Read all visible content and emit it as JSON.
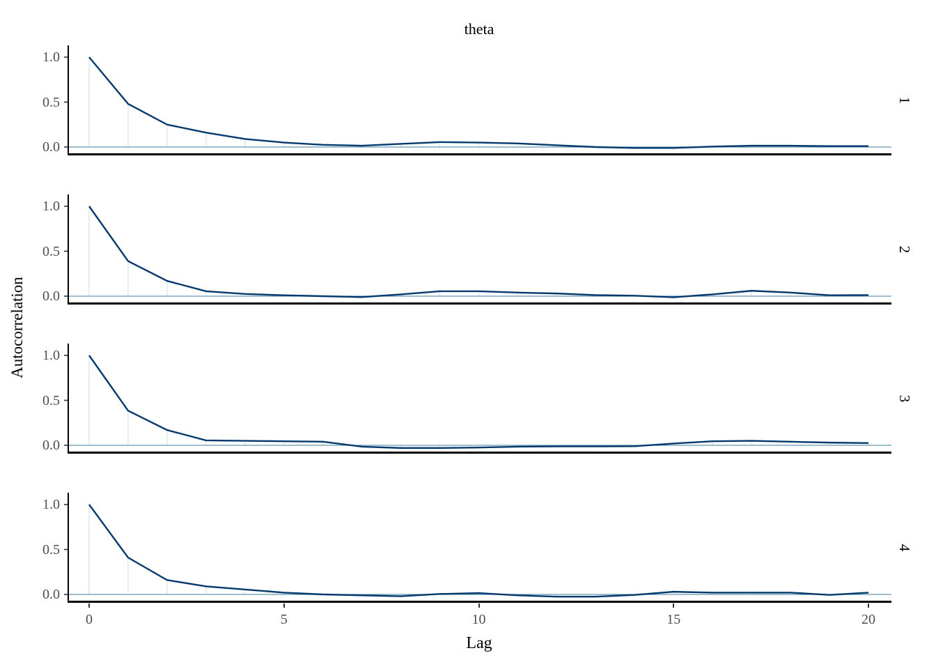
{
  "title": "theta",
  "y_axis": {
    "label": "Autocorrelation",
    "tick_labels": [
      "1.0",
      "0.5",
      "0.0"
    ],
    "tick_values": [
      1.0,
      0.5,
      0.0
    ]
  },
  "x_axis": {
    "label": "Lag",
    "tick_labels": [
      "0",
      "5",
      "10",
      "15",
      "20"
    ],
    "tick_values": [
      0,
      5,
      10,
      15,
      20
    ]
  },
  "facet_labels": [
    "1",
    "2",
    "3",
    "4"
  ],
  "colors": {
    "acf_line": "#03396c",
    "droplines": "#d1e1ec",
    "zero_line": "#6497b1",
    "axis_line": "#000000",
    "tick_mark": "#333333",
    "tick_text": "#4d4d4d",
    "title_text": "#000000",
    "background": "#ffffff"
  },
  "chart_data": {
    "type": "line",
    "title": "theta",
    "xlabel": "Lag",
    "ylabel": "Autocorrelation",
    "x": [
      0,
      1,
      2,
      3,
      4,
      5,
      6,
      7,
      8,
      9,
      10,
      11,
      12,
      13,
      14,
      15,
      16,
      17,
      18,
      19,
      20
    ],
    "xlim": [
      -0.6,
      20.6
    ],
    "ylim": [
      -0.09,
      1.09
    ],
    "grid": false,
    "legend": false,
    "facet_row_labels": [
      "1",
      "2",
      "3",
      "4"
    ],
    "facet_col_label": "theta",
    "style": {
      "droplines": true,
      "zero_line": true
    },
    "series": [
      {
        "name": "chain 1",
        "values": [
          1.0,
          0.48,
          0.25,
          0.16,
          0.09,
          0.05,
          0.025,
          0.015,
          0.035,
          0.055,
          0.05,
          0.04,
          0.02,
          0.0,
          -0.01,
          -0.01,
          0.005,
          0.015,
          0.015,
          0.01,
          0.01
        ]
      },
      {
        "name": "chain 2",
        "values": [
          1.0,
          0.39,
          0.17,
          0.055,
          0.025,
          0.01,
          0.0,
          -0.01,
          0.02,
          0.055,
          0.055,
          0.04,
          0.03,
          0.012,
          0.005,
          -0.012,
          0.02,
          0.06,
          0.04,
          0.01,
          0.012
        ]
      },
      {
        "name": "chain 3",
        "values": [
          1.0,
          0.385,
          0.17,
          0.055,
          0.05,
          0.045,
          0.04,
          -0.015,
          -0.03,
          -0.03,
          -0.025,
          -0.015,
          -0.012,
          -0.012,
          -0.01,
          0.02,
          0.045,
          0.05,
          0.04,
          0.03,
          0.025
        ]
      },
      {
        "name": "chain 4",
        "values": [
          1.0,
          0.41,
          0.16,
          0.09,
          0.055,
          0.02,
          0.0,
          -0.01,
          -0.02,
          0.005,
          0.015,
          -0.01,
          -0.025,
          -0.025,
          -0.005,
          0.03,
          0.02,
          0.02,
          0.02,
          -0.005,
          0.02
        ]
      }
    ]
  }
}
